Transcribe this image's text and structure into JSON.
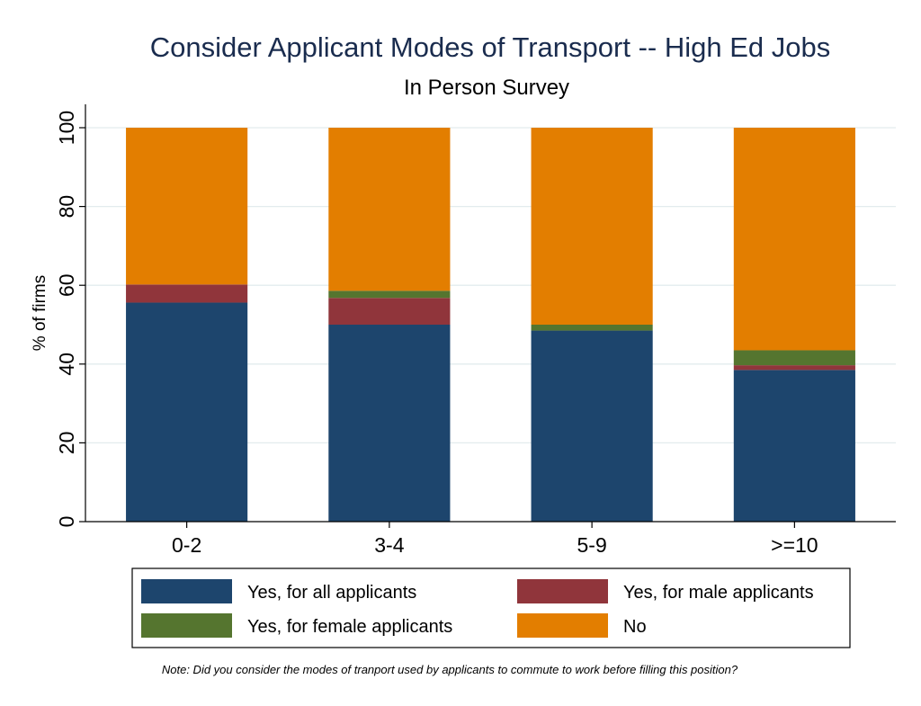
{
  "chart_data": {
    "type": "bar",
    "stacked": true,
    "title": "Consider Applicant Modes of Transport -- High Ed Jobs",
    "subtitle": "In Person Survey",
    "xlabel": "",
    "ylabel": "% of firms",
    "ylim": [
      0,
      100
    ],
    "yticks": [
      0,
      20,
      40,
      60,
      80,
      100
    ],
    "grid": true,
    "categories": [
      "0-2",
      "3-4",
      "5-9",
      ">=10"
    ],
    "series": [
      {
        "name": "Yes, for all applicants",
        "color": "#1d456d",
        "values": [
          55.6,
          50.0,
          48.5,
          38.5
        ]
      },
      {
        "name": "Yes, for male applicants",
        "color": "#90353b",
        "values": [
          4.6,
          6.8,
          0.0,
          1.2
        ]
      },
      {
        "name": "Yes, for female applicants",
        "color": "#55752f",
        "values": [
          0.0,
          1.8,
          1.5,
          3.8
        ]
      },
      {
        "name": "No",
        "color": "#e37e00",
        "values": [
          39.8,
          41.4,
          50.0,
          56.5
        ]
      }
    ],
    "legend_position": "bottom",
    "note": "Note: Did you consider the modes of tranport used by applicants to commute to work before filling this position?"
  }
}
